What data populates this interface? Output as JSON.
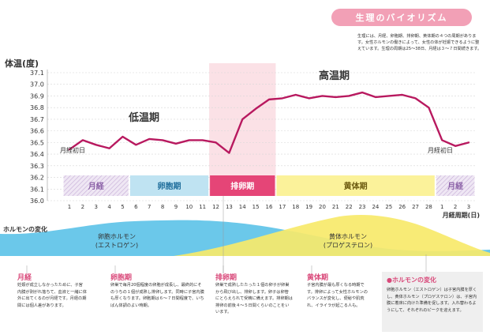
{
  "page": {
    "title": "生理のバイオリズム",
    "intro": "生理には、月経、卵胞期、排卵期、黄体期の４つの周期があります。女性ホルモンの働きによって、女性の体が妊娠できるように整えています。生理の周期は25〜38日、月経は３〜７日間続きます。"
  },
  "chart_data": {
    "type": "line",
    "ylabel": "体温(度)",
    "xlabel": "月経周期(日)",
    "ylim": [
      36.0,
      37.1
    ],
    "yticks": [
      "36.0",
      "36.1",
      "36.2",
      "36.3",
      "36.4",
      "36.5",
      "36.6",
      "36.7",
      "36.8",
      "36.9",
      "37.0",
      "37.1"
    ],
    "x": [
      "1",
      "2",
      "3",
      "4",
      "5",
      "6",
      "7",
      "8",
      "9",
      "10",
      "11",
      "12",
      "13",
      "14",
      "15",
      "16",
      "17",
      "18",
      "19",
      "20",
      "21",
      "22",
      "23",
      "24",
      "25",
      "26",
      "27",
      "28",
      "1",
      "2",
      "3"
    ],
    "series": [
      {
        "values": [
          36.44,
          36.52,
          36.48,
          36.45,
          36.55,
          36.48,
          36.53,
          36.52,
          36.49,
          36.52,
          36.52,
          36.5,
          36.41,
          36.7,
          36.79,
          36.87,
          36.88,
          36.91,
          36.88,
          36.9,
          36.89,
          36.9,
          36.93,
          36.89,
          36.9,
          36.91,
          36.88,
          36.8,
          36.52,
          36.47,
          36.5
        ],
        "color": "#b8195f"
      }
    ],
    "annotations": {
      "low": "低温期",
      "high": "高温期",
      "start_left": "月経初日",
      "start_right": "月経初日"
    },
    "phases": [
      {
        "label": "月経",
        "from": 1,
        "to": 5,
        "fill": "#efe7f4",
        "text": "#8c62a8",
        "hatch": true
      },
      {
        "label": "卵胞期",
        "from": 6,
        "to": 11,
        "fill": "#bfe3f2",
        "text": "#1f6e9c"
      },
      {
        "label": "排卵期",
        "from": 12,
        "to": 16,
        "fill": "#e54577",
        "text": "#ffffff"
      },
      {
        "label": "黄体期",
        "from": 17,
        "to": 28,
        "fill": "#fbf29a",
        "text": "#6d5b10"
      },
      {
        "label": "月経",
        "from": 29,
        "to": 31,
        "fill": "#efe7f4",
        "text": "#8c62a8",
        "hatch": true
      }
    ],
    "ovulation_band": {
      "from": 12,
      "to": 16,
      "color": "#fbe1e6"
    },
    "hormones": {
      "label": "ホルモンの変化",
      "estrogen": {
        "name": "卵胞ホルモン",
        "sub": "(エストロゲン)",
        "color": "#5bc2e8"
      },
      "progesterone": {
        "name": "黄体ホルモン",
        "sub": "(プロゲステロン)",
        "color": "#f7e96a"
      }
    }
  },
  "notes": [
    {
      "head": "月経",
      "color": "#d9497a",
      "body": "妊娠が成立しなかったために、子宮内膜が剥がれ落ちて、血液と一緒に体外に出てくるのが月経です。月経の期間には個人差があります。"
    },
    {
      "head": "卵胞期",
      "color": "#d9497a",
      "body": "卵巣で毎月20個程度の卵胞が成長し、最終的にそのうちの１個が成熟し排卵します。同時に子宮内膜も厚くなります。卵胞期は６〜７日間程度で、いちばん体調のよい時期。"
    },
    {
      "head": "排卵期",
      "color": "#d9497a",
      "body": "卵巣で成熟したたった１個の卵子が卵巣から飛び出し、排卵します。卵子は卵管にとらえられて受精に備えます。排卵期は排卵の前後４〜５日間くらいのことをいいます。"
    },
    {
      "head": "黄体期",
      "color": "#d9497a",
      "body": "子宮内膜が最も厚くなる時期です。排卵によって女性ホルモンのバランスが変化し、便秘や肌荒れ、イライラが起こる人も。"
    }
  ],
  "hormone_note": {
    "head": "●ホルモンの変化",
    "body": "卵胞ホルモン（エストロゲン）は子宮内膜を厚くし、黄体ホルモン（プロゲステロン）は、子宮内膜に着床に向けた準備を促します。入れ替わるようにして、それぞれのピークを迎えます。"
  }
}
